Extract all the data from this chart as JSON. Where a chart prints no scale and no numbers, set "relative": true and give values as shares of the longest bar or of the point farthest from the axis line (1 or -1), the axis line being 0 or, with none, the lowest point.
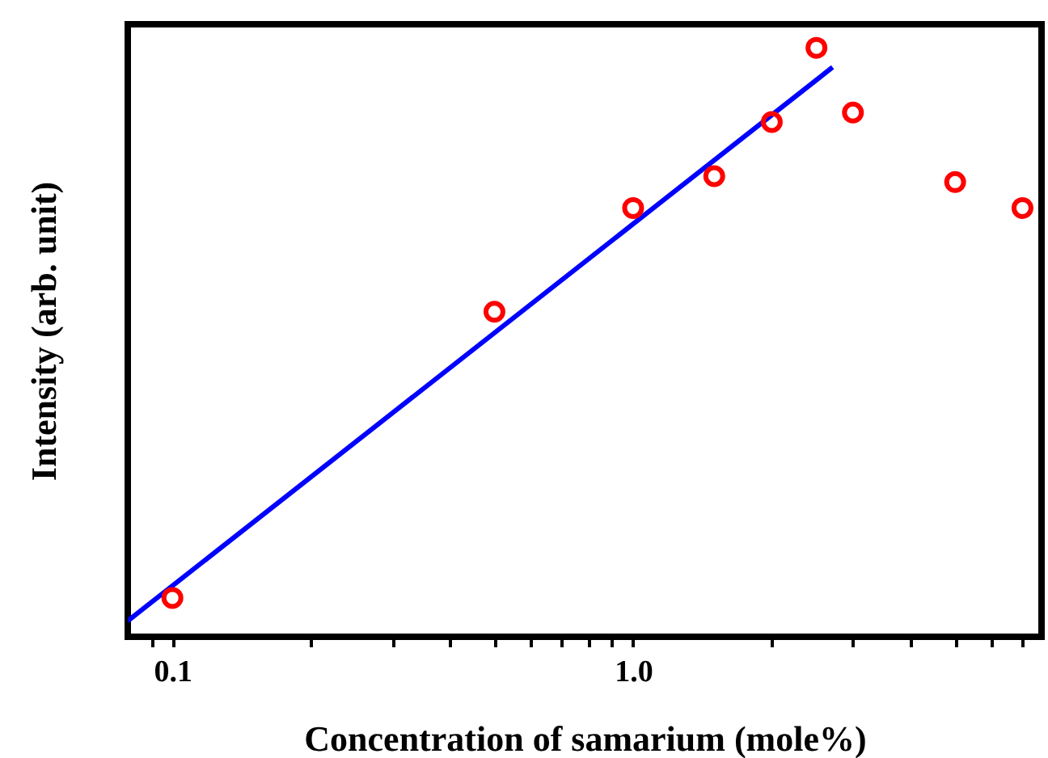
{
  "chart_data": {
    "type": "scatter",
    "relative": true,
    "log": "x",
    "xlabel": "Concentration of samarium (mole%)",
    "ylabel": "Intensity (arb. unit)",
    "xlim": [
      0.08,
      7.7
    ],
    "xticks": [
      {
        "value": 0.09,
        "label": null
      },
      {
        "value": 0.1,
        "label": "0.1"
      },
      {
        "value": 0.2,
        "label": null
      },
      {
        "value": 0.3,
        "label": null
      },
      {
        "value": 0.4,
        "label": null
      },
      {
        "value": 0.5,
        "label": null
      },
      {
        "value": 0.6,
        "label": null
      },
      {
        "value": 0.7,
        "label": null
      },
      {
        "value": 0.8,
        "label": null
      },
      {
        "value": 0.9,
        "label": null
      },
      {
        "value": 1,
        "label": "1.0"
      },
      {
        "value": 2,
        "label": null
      },
      {
        "value": 3,
        "label": null
      },
      {
        "value": 4,
        "label": null
      },
      {
        "value": 5,
        "label": null
      },
      {
        "value": 6,
        "label": null
      },
      {
        "value": 7,
        "label": null
      }
    ],
    "grid": false,
    "series": [
      {
        "type": "line",
        "color": "#0000ff",
        "line_style": "solid",
        "x": [
          0.08,
          2.71
        ],
        "values": [
          0.027,
          0.967
        ]
      },
      {
        "color": "#ff0000",
        "marker": "circle",
        "x": [
          0.1,
          0.5,
          1,
          1.5,
          2,
          2.5,
          3,
          5,
          7
        ],
        "values": [
          0.066,
          0.552,
          0.728,
          0.782,
          0.874,
          1,
          0.89,
          0.772,
          0.728
        ]
      }
    ]
  }
}
